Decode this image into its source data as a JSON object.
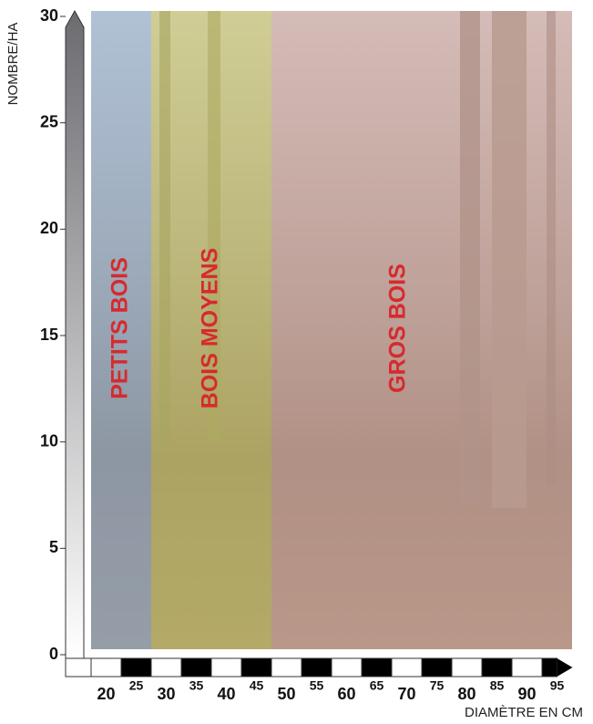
{
  "chart_data": {
    "type": "zones",
    "y_label": "NOMBRE/HA",
    "x_label": "DIAMÈTRE EN CM",
    "xlim": [
      17.5,
      97.5
    ],
    "xticks": [
      20,
      25,
      30,
      35,
      40,
      45,
      50,
      55,
      60,
      65,
      70,
      75,
      80,
      85,
      90,
      95
    ],
    "ylim": [
      0,
      30
    ],
    "yticks": [
      0,
      5,
      10,
      15,
      20,
      25,
      30
    ],
    "zones": [
      {
        "name": "PETITS BOIS",
        "start": 17.5,
        "end": 27.5,
        "color": "#8fb3d6"
      },
      {
        "name": "BOIS MOYENS",
        "start": 27.5,
        "end": 47.5,
        "color": "#c9c860"
      },
      {
        "name": "GROS BOIS",
        "start": 47.5,
        "end": 97.5,
        "color": "#d2a89e"
      }
    ]
  }
}
